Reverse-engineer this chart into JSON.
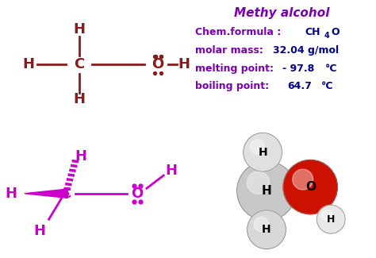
{
  "title": "Methy alcohol",
  "title_color": "#7B00B0",
  "info_bg": "#ddeeff",
  "top_left_bg": "#ffffff",
  "bottom_left_bg": "#ffffff",
  "bottom_right_bg": "#1565C0",
  "bond_color_top": "#8B1A1A",
  "bond_color_bottom": "#CC00CC",
  "border_color": "#1565C0",
  "text_label_color": "#7B00B0",
  "text_value_color": "#00008B",
  "chem_label": "Chem.formula : ",
  "chem_ch": "CH",
  "chem_sub": "4",
  "chem_o": "O",
  "molar_label": "molar mass: ",
  "molar_value": "32.04 g/mol",
  "melting_label": "melting point: ",
  "melting_value": "- 97.8",
  "melting_deg": "°C",
  "boiling_label": "boiling point:  ",
  "boiling_value": "64.7",
  "boiling_deg": "°C"
}
